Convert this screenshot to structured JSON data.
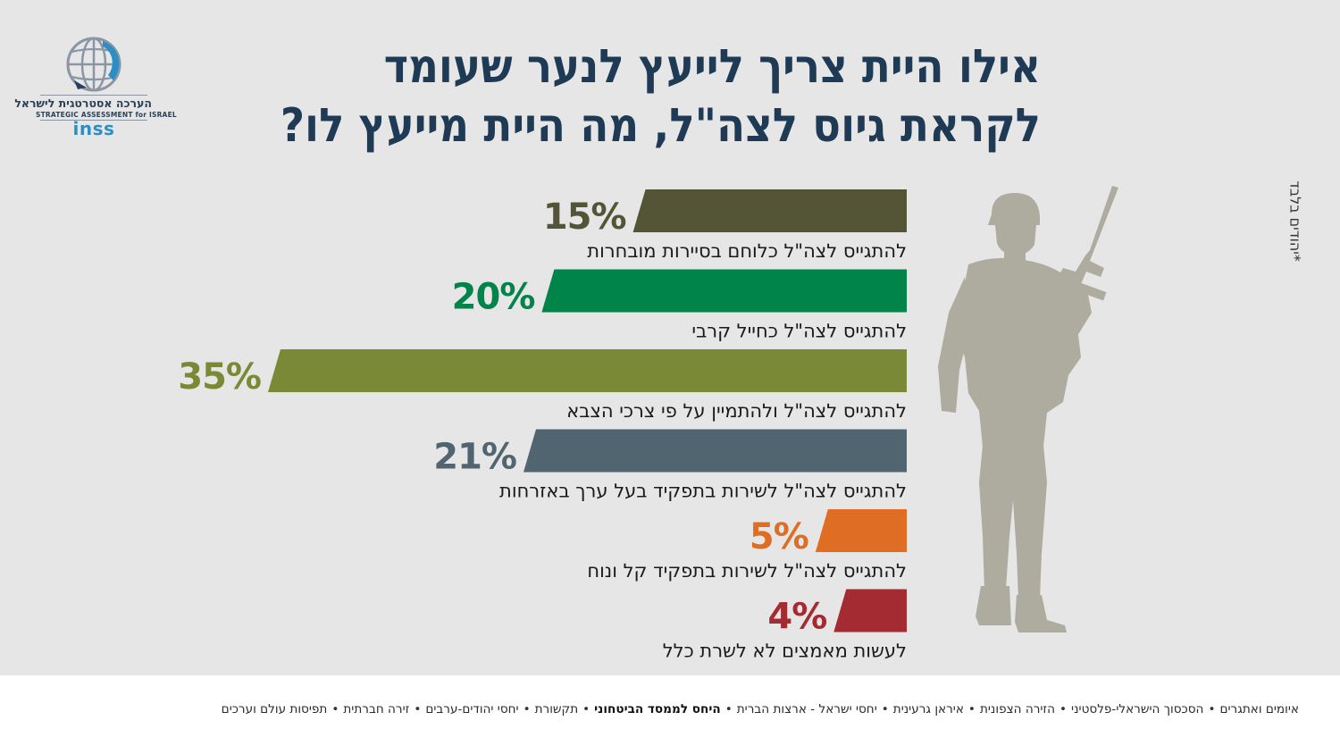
{
  "logo": {
    "text_he": "הערכה אסטרטגית לישראל",
    "text_en": "STRATEGIC ASSESSMENT for ISRAEL",
    "brand": "inss",
    "colors": {
      "globe": "#8a96a3",
      "accent": "#2b8fc6",
      "text": "#2a4259"
    }
  },
  "title": {
    "line1": "אילו היית צריך לייעץ לנער שעומד",
    "line2": "לקראת גיוס לצה\"ל, מה היית מייעץ לו?"
  },
  "footnote": "*יהודים בלבד",
  "chart_data": {
    "type": "bar",
    "orientation": "horizontal",
    "direction": "right-to-left",
    "unit": "%",
    "categories": [
      "להתגייס לצה\"ל כלוחם בסיירות מובחרות",
      "להתגייס לצה\"ל כחייל קרבי",
      "להתגייס לצה\"ל ולהתמיין על פי צרכי הצבא",
      "להתגייס לצה\"ל לשירות בתפקיד בעל ערך באזרחות",
      "להתגייס לצה\"ל לשירות בתפקיד קל ונוח",
      "לעשות מאמצים לא לשרת כלל"
    ],
    "values": [
      15,
      20,
      35,
      21,
      5,
      4
    ],
    "value_labels": [
      "15%",
      "20%",
      "35%",
      "21%",
      "5%",
      "4%"
    ],
    "colors": [
      "#545436",
      "#00844a",
      "#798936",
      "#516570",
      "#df6d23",
      "#a32b31"
    ],
    "xlim": [
      0,
      35
    ],
    "grid": false,
    "legend": "none"
  },
  "soldier_icon": "soldier-silhouette-icon",
  "footer": {
    "items": [
      {
        "label": "איומים ואתגרים",
        "active": false
      },
      {
        "label": "הסכסוך הישראלי-פלסטיני",
        "active": false
      },
      {
        "label": "הזירה הצפונית",
        "active": false
      },
      {
        "label": "איראן גרעינית",
        "active": false
      },
      {
        "label": "יחסי ישראל - ארצות הברית",
        "active": false
      },
      {
        "label": "היחס לממסד הביטחוני",
        "active": true
      },
      {
        "label": "תקשורת",
        "active": false
      },
      {
        "label": "יחסי יהודים-ערבים",
        "active": false
      },
      {
        "label": "זירה חברתית",
        "active": false
      },
      {
        "label": "תפיסות עולם וערכים",
        "active": false
      }
    ]
  }
}
